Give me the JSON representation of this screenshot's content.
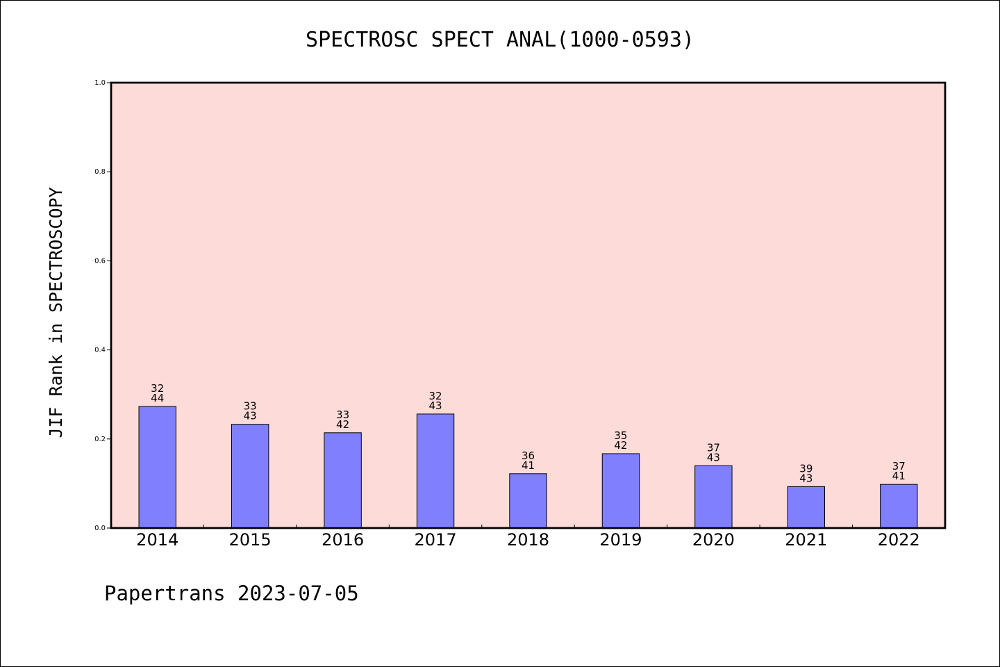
{
  "chart_data": {
    "type": "bar",
    "title": "SPECTROSC SPECT ANAL(1000-0593)",
    "ylabel": "JIF Rank in SPECTROSCOPY",
    "xlabel": "",
    "footer": "Papertrans 2023-07-05",
    "ylim": [
      0,
      1.0
    ],
    "yticks": [
      "0.0",
      "0.2",
      "0.4",
      "0.6",
      "0.8",
      "1.0"
    ],
    "grid": false,
    "legend": "none",
    "categories": [
      "2014",
      "2015",
      "2016",
      "2017",
      "2018",
      "2019",
      "2020",
      "2021",
      "2022"
    ],
    "values": [
      0.273,
      0.233,
      0.214,
      0.256,
      0.122,
      0.167,
      0.14,
      0.093,
      0.098
    ],
    "rank": [
      "32",
      "33",
      "33",
      "32",
      "36",
      "35",
      "37",
      "39",
      "37"
    ],
    "total": [
      "44",
      "43",
      "42",
      "43",
      "41",
      "42",
      "43",
      "43",
      "41"
    ],
    "colors": {
      "plot_background": "#FDDBD8",
      "bar_fill": "#8080FF",
      "bar_stroke": "#000000",
      "axis": "#000000"
    }
  }
}
